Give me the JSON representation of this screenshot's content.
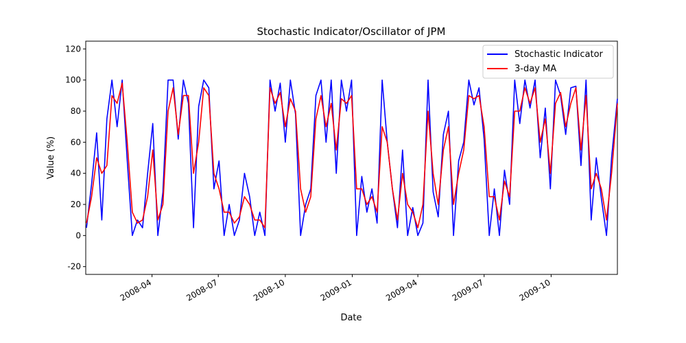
{
  "chart_data": {
    "type": "line",
    "title": "Stochastic Indicator/Oscillator of JPM",
    "xlabel": "Date",
    "ylabel": "Value (%)",
    "xlim": [
      "2008-01-01",
      "2009-12-31"
    ],
    "ylim": [
      -25,
      125
    ],
    "grid": false,
    "legend_position": "top-right",
    "x_ticks": [
      "2008-04",
      "2008-07",
      "2008-10",
      "2009-01",
      "2009-04",
      "2009-07",
      "2009-10"
    ],
    "y_ticks": [
      -20,
      0,
      20,
      40,
      60,
      80,
      100,
      120
    ],
    "x": [
      "2008-01-02",
      "2008-01-09",
      "2008-01-16",
      "2008-01-23",
      "2008-01-30",
      "2008-02-06",
      "2008-02-13",
      "2008-02-20",
      "2008-02-27",
      "2008-03-05",
      "2008-03-12",
      "2008-03-19",
      "2008-03-26",
      "2008-04-02",
      "2008-04-09",
      "2008-04-16",
      "2008-04-23",
      "2008-04-30",
      "2008-05-07",
      "2008-05-14",
      "2008-05-21",
      "2008-05-28",
      "2008-06-04",
      "2008-06-11",
      "2008-06-18",
      "2008-06-25",
      "2008-07-02",
      "2008-07-09",
      "2008-07-16",
      "2008-07-23",
      "2008-07-30",
      "2008-08-06",
      "2008-08-13",
      "2008-08-20",
      "2008-08-27",
      "2008-09-03",
      "2008-09-10",
      "2008-09-17",
      "2008-09-24",
      "2008-10-01",
      "2008-10-08",
      "2008-10-15",
      "2008-10-22",
      "2008-10-29",
      "2008-11-05",
      "2008-11-12",
      "2008-11-19",
      "2008-11-26",
      "2008-12-03",
      "2008-12-10",
      "2008-12-17",
      "2008-12-24",
      "2008-12-31",
      "2009-01-07",
      "2009-01-14",
      "2009-01-21",
      "2009-01-28",
      "2009-02-04",
      "2009-02-11",
      "2009-02-18",
      "2009-02-25",
      "2009-03-04",
      "2009-03-11",
      "2009-03-18",
      "2009-03-25",
      "2009-04-01",
      "2009-04-08",
      "2009-04-15",
      "2009-04-22",
      "2009-04-29",
      "2009-05-06",
      "2009-05-13",
      "2009-05-20",
      "2009-05-27",
      "2009-06-03",
      "2009-06-10",
      "2009-06-17",
      "2009-06-24",
      "2009-07-01",
      "2009-07-08",
      "2009-07-15",
      "2009-07-22",
      "2009-07-29",
      "2009-08-05",
      "2009-08-12",
      "2009-08-19",
      "2009-08-26",
      "2009-09-02",
      "2009-09-09",
      "2009-09-16",
      "2009-09-23",
      "2009-09-30",
      "2009-10-07",
      "2009-10-14",
      "2009-10-21",
      "2009-10-28",
      "2009-11-04",
      "2009-11-11",
      "2009-11-18",
      "2009-11-25",
      "2009-12-02",
      "2009-12-09",
      "2009-12-16",
      "2009-12-23",
      "2009-12-31"
    ],
    "series": [
      {
        "name": "Stochastic Indicator",
        "color": "#0000ff",
        "values": [
          5,
          33,
          66,
          10,
          75,
          100,
          70,
          100,
          48,
          0,
          10,
          5,
          40,
          72,
          0,
          28,
          100,
          100,
          62,
          100,
          85,
          5,
          83,
          100,
          95,
          30,
          48,
          0,
          20,
          0,
          10,
          40,
          25,
          0,
          15,
          0,
          100,
          80,
          98,
          60,
          100,
          78,
          0,
          20,
          30,
          90,
          100,
          60,
          100,
          40,
          100,
          80,
          100,
          0,
          38,
          15,
          30,
          8,
          100,
          60,
          30,
          5,
          55,
          0,
          18,
          0,
          8,
          100,
          28,
          12,
          65,
          80,
          0,
          48,
          60,
          100,
          84,
          95,
          62,
          0,
          30,
          0,
          42,
          20,
          100,
          72,
          100,
          82,
          100,
          50,
          82,
          30,
          100,
          90,
          65,
          95,
          96,
          45,
          100,
          10,
          50,
          24,
          0,
          50,
          88
        ]
      },
      {
        "name": "3-day MA",
        "color": "#ff0000",
        "values": [
          8,
          25,
          50,
          40,
          45,
          90,
          85,
          98,
          60,
          15,
          8,
          10,
          25,
          55,
          10,
          20,
          80,
          95,
          65,
          90,
          90,
          40,
          60,
          95,
          90,
          40,
          30,
          15,
          15,
          8,
          12,
          25,
          20,
          10,
          10,
          5,
          95,
          85,
          92,
          70,
          88,
          80,
          30,
          15,
          25,
          75,
          90,
          70,
          85,
          55,
          88,
          85,
          90,
          30,
          30,
          20,
          25,
          15,
          70,
          60,
          30,
          10,
          40,
          20,
          15,
          5,
          20,
          80,
          40,
          20,
          55,
          70,
          20,
          40,
          55,
          90,
          88,
          90,
          70,
          25,
          25,
          10,
          35,
          25,
          80,
          80,
          95,
          85,
          95,
          60,
          75,
          40,
          85,
          92,
          70,
          85,
          95,
          55,
          90,
          30,
          40,
          30,
          10,
          40,
          85
        ]
      }
    ]
  }
}
